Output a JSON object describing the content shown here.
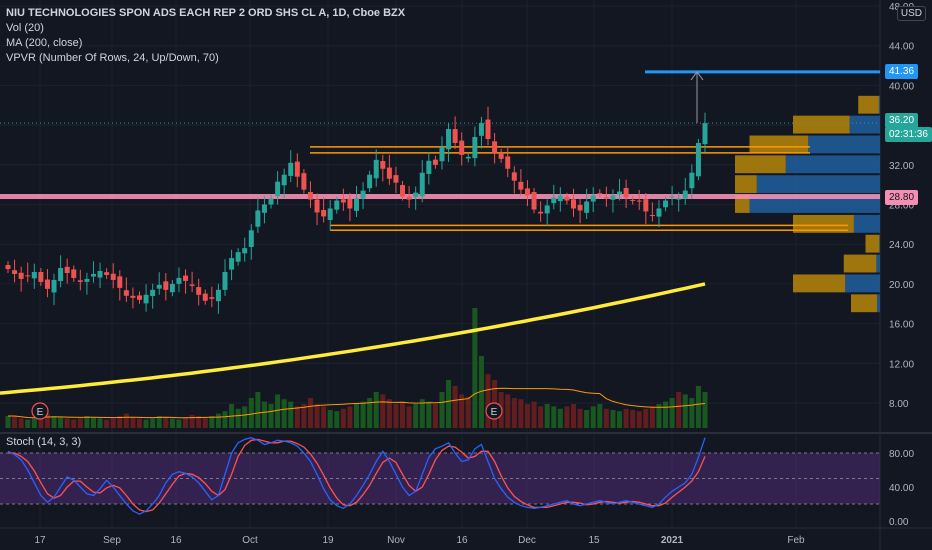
{
  "header": {
    "symbol_title": "NIU TECHNOLOGIES SPON ADS EACH REP 2 ORD SHS CL A, 1D, Cboe BZX",
    "vol_indicator": "Vol (20)",
    "ma_indicator": "MA (200, close)",
    "vpvr_indicator": "VPVR (Number Of Rows, 24, Up/Down, 70)"
  },
  "currency_badge": "USD",
  "price_axis": {
    "ticks": [
      "48.00",
      "44.00",
      "40.00",
      "36.00",
      "32.00",
      "28.00",
      "24.00",
      "20.00",
      "16.00",
      "12.00",
      "8.00"
    ]
  },
  "price_badges": {
    "target": {
      "text": "41.36",
      "color": "#2196f3"
    },
    "last": {
      "text": "36.20",
      "color": "#26a69a"
    },
    "countdown": {
      "text": "02:31:36",
      "color": "#26a69a"
    },
    "support": {
      "text": "28.80",
      "color": "#f48fb1"
    }
  },
  "stoch_panel": {
    "label": "Stoch (14, 3, 3)",
    "ticks": [
      "80.00",
      "40.00",
      "0.00"
    ],
    "band_upper": 80,
    "band_lower": 20
  },
  "time_axis": {
    "ticks": [
      "17",
      "Sep",
      "16",
      "Oct",
      "19",
      "Nov",
      "16",
      "Dec",
      "15",
      "2021",
      "Feb"
    ]
  },
  "earnings_markers": [
    "E",
    "E"
  ],
  "colors": {
    "up": "#26a69a",
    "down": "#ef5350",
    "ma": "#ffeb3b",
    "hline_orange": "#ff9800",
    "hline_pink": "#f48fb1",
    "target_line": "#2196f3",
    "stoch_k": "#2962ff",
    "stoch_d": "#ff5252",
    "stoch_bg": "#4a2a6e"
  },
  "chart_data": {
    "type": "candlestick",
    "title": "NIU TECHNOLOGIES SPON ADS EACH REP 2 ORD SHS CL A, 1D, Cboe BZX",
    "ylim": [
      6,
      48
    ],
    "price_level_lines": [
      41.36,
      33.8,
      33.2,
      28.8,
      25.9,
      25.4
    ],
    "ma200_start": 9.0,
    "ma200_end": 20.0,
    "closes": [
      21.5,
      21.0,
      20.5,
      20.8,
      21.2,
      20.2,
      19.5,
      20.4,
      21.6,
      21.1,
      20.6,
      20.2,
      20.5,
      21.0,
      21.3,
      20.9,
      20.4,
      19.6,
      18.8,
      18.6,
      18.4,
      18.9,
      19.4,
      19.9,
      19.4,
      20.0,
      20.6,
      20.3,
      19.8,
      18.9,
      18.3,
      18.5,
      19.4,
      21.2,
      22.6,
      23.2,
      23.6,
      25.4,
      27.4,
      28.0,
      28.6,
      30.3,
      31.0,
      32.2,
      30.8,
      29.5,
      28.5,
      27.2,
      26.8,
      27.6,
      28.4,
      28.2,
      27.6,
      28.6,
      29.4,
      31.0,
      32.5,
      31.6,
      30.6,
      30.2,
      28.8,
      28.5,
      29.2,
      31.2,
      32.4,
      32.0,
      33.8,
      35.6,
      34.2,
      33.0,
      32.8,
      34.8,
      36.2,
      34.6,
      33.2,
      32.6,
      31.6,
      30.4,
      29.5,
      28.9,
      27.5,
      27.1,
      27.9,
      28.7,
      28.9,
      28.4,
      27.6,
      27.4,
      28.3,
      28.9,
      29.1,
      28.6,
      28.9,
      29.3,
      28.7,
      28.4,
      28.3,
      27.3,
      26.9,
      27.6,
      28.4,
      28.8,
      28.6,
      29.4,
      31.2,
      34.2,
      36.2
    ],
    "volume_relative": [
      0.1,
      0.1,
      0.08,
      0.07,
      0.08,
      0.09,
      0.12,
      0.1,
      0.09,
      0.08,
      0.07,
      0.08,
      0.1,
      0.09,
      0.08,
      0.07,
      0.08,
      0.1,
      0.12,
      0.09,
      0.08,
      0.07,
      0.08,
      0.1,
      0.09,
      0.08,
      0.07,
      0.09,
      0.11,
      0.1,
      0.09,
      0.1,
      0.12,
      0.14,
      0.2,
      0.16,
      0.18,
      0.25,
      0.3,
      0.22,
      0.2,
      0.28,
      0.24,
      0.22,
      0.18,
      0.2,
      0.25,
      0.2,
      0.18,
      0.15,
      0.14,
      0.16,
      0.18,
      0.2,
      0.22,
      0.25,
      0.3,
      0.28,
      0.24,
      0.2,
      0.22,
      0.18,
      0.2,
      0.24,
      0.22,
      0.2,
      0.3,
      0.4,
      0.35,
      0.28,
      0.26,
      1.0,
      0.6,
      0.45,
      0.4,
      0.3,
      0.28,
      0.25,
      0.24,
      0.2,
      0.22,
      0.18,
      0.2,
      0.18,
      0.16,
      0.18,
      0.2,
      0.16,
      0.15,
      0.18,
      0.2,
      0.16,
      0.15,
      0.14,
      0.16,
      0.15,
      0.14,
      0.16,
      0.18,
      0.2,
      0.22,
      0.25,
      0.3,
      0.28,
      0.25,
      0.35,
      0.3
    ],
    "stoch_k": [
      82,
      78,
      72,
      60,
      45,
      30,
      22,
      28,
      40,
      52,
      48,
      40,
      32,
      30,
      38,
      48,
      40,
      30,
      20,
      12,
      8,
      12,
      20,
      30,
      45,
      55,
      58,
      56,
      52,
      45,
      35,
      25,
      30,
      55,
      80,
      92,
      96,
      98,
      95,
      90,
      92,
      95,
      94,
      92,
      88,
      80,
      70,
      55,
      38,
      25,
      18,
      15,
      20,
      30,
      42,
      55,
      70,
      82,
      70,
      55,
      40,
      30,
      35,
      55,
      75,
      85,
      88,
      92,
      80,
      70,
      72,
      85,
      90,
      70,
      50,
      38,
      28,
      22,
      18,
      16,
      15,
      16,
      18,
      20,
      22,
      24,
      20,
      18,
      20,
      22,
      24,
      22,
      20,
      22,
      24,
      22,
      20,
      18,
      16,
      20,
      28,
      35,
      40,
      45,
      55,
      75,
      98
    ],
    "stoch_d": [
      80,
      80,
      76,
      70,
      59,
      45,
      32,
      27,
      30,
      40,
      47,
      47,
      40,
      34,
      33,
      39,
      42,
      39,
      30,
      20,
      13,
      11,
      13,
      21,
      32,
      43,
      53,
      56,
      55,
      51,
      44,
      35,
      30,
      37,
      55,
      76,
      89,
      95,
      96,
      94,
      92,
      92,
      94,
      94,
      91,
      87,
      79,
      68,
      54,
      39,
      27,
      19,
      18,
      22,
      31,
      42,
      56,
      69,
      74,
      69,
      55,
      42,
      35,
      40,
      55,
      72,
      83,
      88,
      87,
      81,
      74,
      76,
      82,
      82,
      70,
      53,
      39,
      29,
      23,
      19,
      16,
      16,
      16,
      18,
      20,
      22,
      22,
      21,
      19,
      20,
      22,
      23,
      22,
      21,
      22,
      23,
      22,
      20,
      18,
      18,
      21,
      28,
      34,
      40,
      47,
      58,
      76
    ]
  }
}
